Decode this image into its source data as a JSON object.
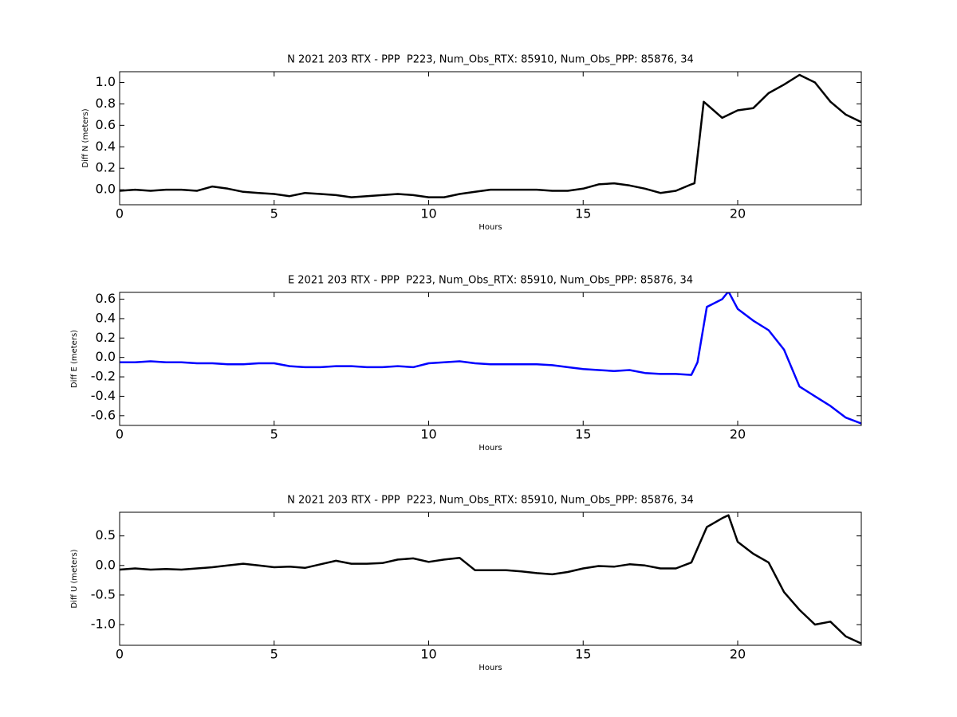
{
  "chart_data": [
    {
      "type": "line",
      "title": "N 2021 203 RTX - PPP  P223, Num_Obs_RTX: 85910, Num_Obs_PPP: 85876, 34",
      "xlabel": "Hours",
      "ylabel": "Diff N (meters)",
      "color": "#000000",
      "xlim": [
        0,
        24
      ],
      "xticks": [
        0,
        5,
        10,
        15,
        20
      ],
      "ylim": [
        -0.14,
        1.1
      ],
      "yticks": [
        {
          "value": 0,
          "label": "0.0"
        },
        0.2,
        0.4,
        0.6,
        0.8,
        {
          "value": 1,
          "label": "1.0"
        }
      ],
      "x": [
        0,
        0.5,
        1,
        1.5,
        2,
        2.5,
        3,
        3.5,
        4,
        4.5,
        5,
        5.5,
        6,
        6.5,
        7,
        7.5,
        8,
        8.5,
        9,
        9.5,
        10,
        10.5,
        11,
        11.5,
        12,
        12.5,
        13,
        13.5,
        14,
        14.5,
        15,
        15.5,
        16,
        16.5,
        17,
        17.5,
        18,
        18.5,
        18.6,
        18.9,
        19.5,
        20,
        20.5,
        21,
        21.5,
        22,
        22.5,
        23,
        23.5,
        24
      ],
      "values": [
        -0.01,
        0,
        -0.01,
        0,
        0,
        -0.01,
        0.03,
        0.01,
        -0.02,
        -0.03,
        -0.04,
        -0.06,
        -0.03,
        -0.04,
        -0.05,
        -0.07,
        -0.06,
        -0.05,
        -0.04,
        -0.05,
        -0.07,
        -0.07,
        -0.04,
        -0.02,
        0,
        0,
        0,
        0,
        -0.01,
        -0.01,
        0.01,
        0.05,
        0.06,
        0.04,
        0.01,
        -0.03,
        -0.01,
        0.05,
        0.06,
        0.82,
        0.67,
        0.74,
        0.76,
        0.9,
        0.98,
        1.07,
        1,
        0.82,
        0.7,
        0.63
      ]
    },
    {
      "type": "line",
      "title": "E 2021 203 RTX - PPP  P223, Num_Obs_RTX: 85910, Num_Obs_PPP: 85876, 34",
      "xlabel": "Hours",
      "ylabel": "Diff E (meters)",
      "color": "#0000ff",
      "xlim": [
        0,
        24
      ],
      "xticks": [
        0,
        5,
        10,
        15,
        20
      ],
      "ylim": [
        -0.7,
        0.67
      ],
      "yticks": [
        -0.6,
        -0.4,
        -0.2,
        {
          "value": 0,
          "label": "0.0"
        },
        0.2,
        0.4,
        0.6
      ],
      "x": [
        0,
        0.5,
        1,
        1.5,
        2,
        2.5,
        3,
        3.5,
        4,
        4.5,
        5,
        5.5,
        6,
        6.5,
        7,
        7.5,
        8,
        8.5,
        9,
        9.5,
        10,
        10.5,
        11,
        11.5,
        12,
        12.5,
        13,
        13.5,
        14,
        14.5,
        15,
        15.5,
        16,
        16.5,
        17,
        17.5,
        18,
        18.5,
        18.7,
        19,
        19.5,
        19.7,
        20,
        20.5,
        21,
        21.5,
        22,
        22.5,
        23,
        23.5,
        24
      ],
      "values": [
        -0.05,
        -0.05,
        -0.04,
        -0.05,
        -0.05,
        -0.06,
        -0.06,
        -0.07,
        -0.07,
        -0.06,
        -0.06,
        -0.09,
        -0.1,
        -0.1,
        -0.09,
        -0.09,
        -0.1,
        -0.1,
        -0.09,
        -0.1,
        -0.06,
        -0.05,
        -0.04,
        -0.06,
        -0.07,
        -0.07,
        -0.07,
        -0.07,
        -0.08,
        -0.1,
        -0.12,
        -0.13,
        -0.14,
        -0.13,
        -0.16,
        -0.17,
        -0.17,
        -0.18,
        -0.05,
        0.52,
        0.6,
        0.68,
        0.5,
        0.38,
        0.28,
        0.08,
        -0.3,
        -0.4,
        -0.5,
        -0.62,
        -0.68
      ]
    },
    {
      "type": "line",
      "title": "N 2021 203 RTX - PPP  P223, Num_Obs_RTX: 85910, Num_Obs_PPP: 85876, 34",
      "xlabel": "Hours",
      "ylabel": "Diff U (meters)",
      "color": "#000000",
      "xlim": [
        0,
        24
      ],
      "xticks": [
        0,
        5,
        10,
        15,
        20
      ],
      "ylim": [
        -1.35,
        0.9
      ],
      "yticks": [
        {
          "value": -1,
          "label": "-1.0"
        },
        -0.5,
        {
          "value": 0,
          "label": "0.0"
        },
        0.5
      ],
      "x": [
        0,
        0.5,
        1,
        1.5,
        2,
        2.5,
        3,
        3.5,
        4,
        4.5,
        5,
        5.5,
        6,
        6.5,
        7,
        7.5,
        8,
        8.5,
        9,
        9.5,
        10,
        10.5,
        11,
        11.5,
        12,
        12.5,
        13,
        13.5,
        14,
        14.5,
        15,
        15.5,
        16,
        16.5,
        17,
        17.5,
        18,
        18.5,
        19,
        19.5,
        19.7,
        20,
        20.5,
        21,
        21.5,
        22,
        22.5,
        23,
        23.5,
        24
      ],
      "values": [
        -0.07,
        -0.05,
        -0.07,
        -0.06,
        -0.07,
        -0.05,
        -0.03,
        0,
        0.03,
        0,
        -0.03,
        -0.02,
        -0.04,
        0.02,
        0.08,
        0.03,
        0.03,
        0.04,
        0.1,
        0.12,
        0.06,
        0.1,
        0.13,
        -0.08,
        -0.08,
        -0.08,
        -0.1,
        -0.13,
        -0.15,
        -0.11,
        -0.05,
        -0.01,
        -0.02,
        0.02,
        0,
        -0.05,
        -0.05,
        0.05,
        0.65,
        0.8,
        0.85,
        0.4,
        0.2,
        0.05,
        -0.45,
        -0.75,
        -1,
        -0.95,
        -1.2,
        -1.32
      ]
    }
  ]
}
